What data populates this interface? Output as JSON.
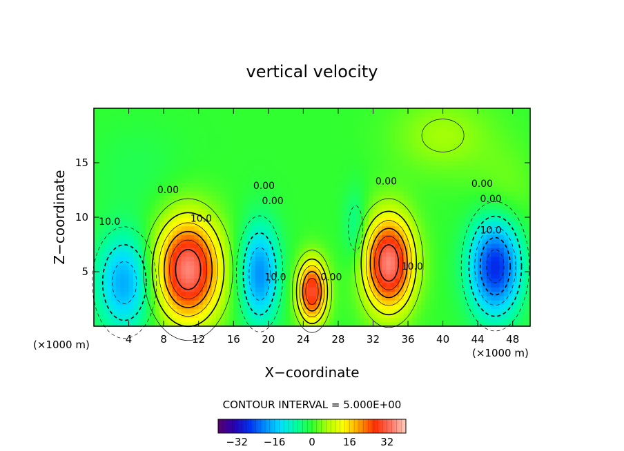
{
  "chart_data": {
    "type": "heatmap",
    "title": "vertical velocity",
    "xlabel": "X−coordinate",
    "ylabel": "Z−coordinate",
    "x_unit_left": "(×1000 m)",
    "x_unit_right": "(×1000 m)",
    "xlim": [
      0,
      50
    ],
    "ylim": [
      0,
      20
    ],
    "x_ticks": [
      4,
      8,
      12,
      16,
      20,
      24,
      28,
      32,
      36,
      40,
      44,
      48
    ],
    "x_tick_labels": [
      "4",
      "8",
      "12",
      "16",
      "20",
      "24",
      "28",
      "32",
      "36",
      "40",
      "44",
      "48"
    ],
    "y_ticks": [
      5,
      10,
      15
    ],
    "y_tick_labels": [
      "5",
      "10",
      "15"
    ],
    "contour_interval_text": "CONTOUR INTERVAL = 5.000E+00",
    "colorbar": {
      "min": -40,
      "max": 40,
      "ticks": [
        -32,
        -16,
        0,
        16,
        32
      ],
      "tick_labels": [
        "−32",
        "−16",
        "0",
        "16",
        "32"
      ],
      "colors": [
        "#5a0070",
        "#2a00b0",
        "#0030f0",
        "#0090ff",
        "#00e0ff",
        "#00ffa0",
        "#30ff30",
        "#b0ff00",
        "#ffff00",
        "#ffa000",
        "#ff3000",
        "#ff7060",
        "#ffd0c0"
      ]
    },
    "contour_labels": [
      {
        "text": "0.00",
        "x": 8.5,
        "z": 12.2
      },
      {
        "text": "0.00",
        "x": 19.5,
        "z": 12.6
      },
      {
        "text": "0.00",
        "x": 20.5,
        "z": 11.2
      },
      {
        "text": "0.00",
        "x": 33.5,
        "z": 13.0
      },
      {
        "text": "0.00",
        "x": 44.5,
        "z": 12.8
      },
      {
        "text": "0.00",
        "x": 45.5,
        "z": 11.4
      },
      {
        "text": "0.00",
        "x": 27.2,
        "z": 4.2
      },
      {
        "text": "10.0",
        "x": 1.8,
        "z": 9.3
      },
      {
        "text": "10.0",
        "x": 12.3,
        "z": 9.6
      },
      {
        "text": "10.0",
        "x": 20.8,
        "z": 4.2
      },
      {
        "text": "10.0",
        "x": 36.5,
        "z": 5.2
      },
      {
        "text": "10.0",
        "x": 45.5,
        "z": 8.5
      }
    ],
    "cells": [
      {
        "x": 3.5,
        "z": 4.0,
        "sx": 2.3,
        "sz": 3.2,
        "value": -18
      },
      {
        "x": 10.8,
        "z": 5.2,
        "sx": 2.6,
        "sz": 3.3,
        "value": 35
      },
      {
        "x": 19.0,
        "z": 4.8,
        "sx": 1.6,
        "sz": 3.2,
        "value": -20
      },
      {
        "x": 25.0,
        "z": 3.2,
        "sx": 1.2,
        "sz": 2.0,
        "value": 30
      },
      {
        "x": 30.0,
        "z": 9.0,
        "sx": 1.0,
        "sz": 2.5,
        "value": -7
      },
      {
        "x": 33.8,
        "z": 5.8,
        "sx": 2.0,
        "sz": 3.0,
        "value": 35
      },
      {
        "x": 46.0,
        "z": 5.5,
        "sx": 2.1,
        "sz": 3.2,
        "value": -28
      },
      {
        "x": 40.0,
        "z": 17.5,
        "sx": 4.0,
        "sz": 2.5,
        "value": 6
      },
      {
        "x": 47.0,
        "z": 12.0,
        "sx": 2.5,
        "sz": 3.0,
        "value": 4
      },
      {
        "x": 5.0,
        "z": 14.5,
        "sx": 4.0,
        "sz": 3.0,
        "value": -2
      }
    ]
  }
}
